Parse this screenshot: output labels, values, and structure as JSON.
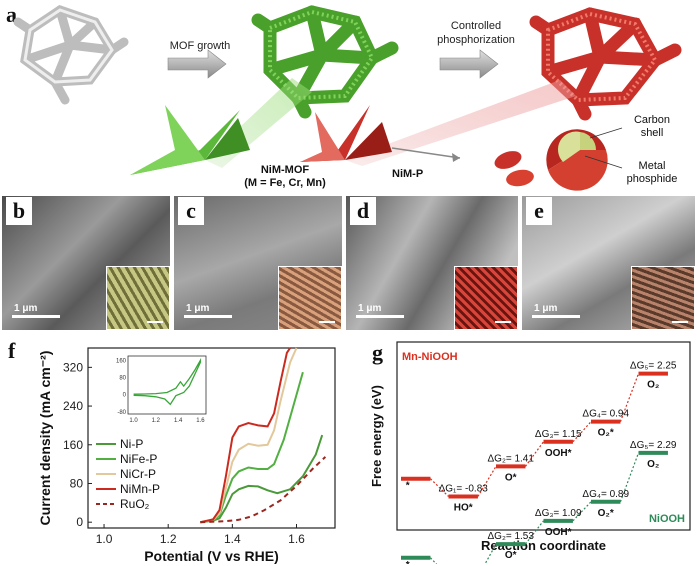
{
  "panel_a": {
    "letter": "a",
    "step1": "MOF growth",
    "step2_line1": "Controlled",
    "step2_line2": "phosphorization",
    "mof_label_line1": "NiM-MOF",
    "mof_label_line2": "(M = Fe, Cr, Mn)",
    "phosphide_label": "NiM-P",
    "carbon_shell_line1": "Carbon",
    "carbon_shell_line2": "shell",
    "metal_phosphide_line1": "Metal",
    "metal_phosphide_line2": "phosphide"
  },
  "sem_panels": [
    {
      "letter": "b",
      "scale": "1 μm",
      "inset_color": "#b8b872"
    },
    {
      "letter": "c",
      "scale": "1 μm",
      "inset_color": "#c88a68"
    },
    {
      "letter": "d",
      "scale": "1 μm",
      "inset_color": "#b8372e"
    },
    {
      "letter": "e",
      "scale": "1 μm",
      "inset_color": "#9b6a52"
    }
  ],
  "panel_f": {
    "letter": "f"
  },
  "panel_g": {
    "letter": "g"
  },
  "chart_data": [
    {
      "id": "f",
      "type": "line",
      "xlabel": "Potential (V vs RHE)",
      "ylabel": "Current density (mA cm⁻²)",
      "xlim": [
        0.95,
        1.72
      ],
      "ylim": [
        -12,
        360
      ],
      "xticks": [
        "1.0",
        "1.2",
        "1.4",
        "1.6"
      ],
      "yticks": [
        "0",
        "80",
        "160",
        "240",
        "320"
      ],
      "legend_position": "center-left",
      "series": [
        {
          "name": "Ni-P",
          "color": "#4a9a3a",
          "dash": false,
          "points": [
            [
              1.3,
              0
            ],
            [
              1.34,
              3
            ],
            [
              1.36,
              8
            ],
            [
              1.38,
              30
            ],
            [
              1.4,
              58
            ],
            [
              1.42,
              68
            ],
            [
              1.45,
              75
            ],
            [
              1.48,
              74
            ],
            [
              1.51,
              66
            ],
            [
              1.54,
              60
            ],
            [
              1.58,
              68
            ],
            [
              1.62,
              95
            ],
            [
              1.66,
              140
            ],
            [
              1.68,
              180
            ]
          ]
        },
        {
          "name": "NiFe-P",
          "color": "#52b042",
          "dash": false,
          "points": [
            [
              1.3,
              0
            ],
            [
              1.34,
              4
            ],
            [
              1.36,
              14
            ],
            [
              1.38,
              55
            ],
            [
              1.4,
              90
            ],
            [
              1.42,
              105
            ],
            [
              1.45,
              113
            ],
            [
              1.48,
              110
            ],
            [
              1.51,
              110
            ],
            [
              1.53,
              120
            ],
            [
              1.56,
              170
            ],
            [
              1.59,
              240
            ],
            [
              1.62,
              310
            ]
          ]
        },
        {
          "name": "NiCr-P",
          "color": "#e2c89a",
          "dash": false,
          "points": [
            [
              1.3,
              0
            ],
            [
              1.34,
              5
            ],
            [
              1.36,
              18
            ],
            [
              1.38,
              70
            ],
            [
              1.4,
              125
            ],
            [
              1.42,
              150
            ],
            [
              1.45,
              162
            ],
            [
              1.48,
              158
            ],
            [
              1.51,
              160
            ],
            [
              1.53,
              190
            ],
            [
              1.55,
              250
            ],
            [
              1.58,
              330
            ],
            [
              1.6,
              360
            ]
          ]
        },
        {
          "name": "NiMn-P",
          "color": "#cc2a1e",
          "dash": false,
          "points": [
            [
              1.3,
              0
            ],
            [
              1.34,
              6
            ],
            [
              1.36,
              25
            ],
            [
              1.38,
              95
            ],
            [
              1.4,
              175
            ],
            [
              1.42,
              198
            ],
            [
              1.45,
              205
            ],
            [
              1.48,
              200
            ],
            [
              1.51,
              198
            ],
            [
              1.53,
              225
            ],
            [
              1.55,
              290
            ],
            [
              1.57,
              350
            ],
            [
              1.58,
              360
            ]
          ]
        },
        {
          "name": "RuO₂",
          "color": "#9a2820",
          "dash": true,
          "points": [
            [
              1.3,
              0
            ],
            [
              1.38,
              2
            ],
            [
              1.42,
              5
            ],
            [
              1.46,
              12
            ],
            [
              1.5,
              25
            ],
            [
              1.55,
              45
            ],
            [
              1.6,
              75
            ],
            [
              1.65,
              110
            ],
            [
              1.69,
              135
            ]
          ]
        }
      ],
      "inset": {
        "xlim": [
          0.95,
          1.65
        ],
        "ylim": [
          -90,
          180
        ],
        "xticks": [
          "1.0",
          "1.2",
          "1.4",
          "1.6"
        ],
        "yticks": [
          "160",
          "80",
          "0",
          "-80"
        ],
        "cv_upper": [
          [
            1.0,
            2
          ],
          [
            1.1,
            3
          ],
          [
            1.2,
            5
          ],
          [
            1.3,
            10
          ],
          [
            1.38,
            30
          ],
          [
            1.42,
            60
          ],
          [
            1.45,
            40
          ],
          [
            1.5,
            75
          ],
          [
            1.55,
            115
          ],
          [
            1.6,
            160
          ]
        ],
        "cv_lower": [
          [
            1.6,
            150
          ],
          [
            1.5,
            40
          ],
          [
            1.45,
            10
          ],
          [
            1.38,
            -5
          ],
          [
            1.33,
            -45
          ],
          [
            1.28,
            -20
          ],
          [
            1.2,
            -10
          ],
          [
            1.1,
            -5
          ],
          [
            1.0,
            -3
          ]
        ]
      }
    },
    {
      "id": "g",
      "type": "line",
      "subtype": "free-energy-diagram",
      "xlabel": "Reaction coordinate",
      "ylabel": "Free energy (eV)",
      "series": [
        {
          "name": "Mn-NiOOH",
          "color": "#d93020",
          "levels": [
            {
              "label": "*",
              "value": 0
            },
            {
              "label": "HO*",
              "value": -0.83
            },
            {
              "label": "O*",
              "value": 0.58
            },
            {
              "label": "OOH*",
              "value": 1.73
            },
            {
              "label": "O₂*",
              "value": 2.67
            },
            {
              "label": "O₂",
              "value": 4.92
            }
          ],
          "steps": [
            "ΔG₁= -0.83",
            "ΔG₂= 1.41",
            "ΔG₃= 1.15",
            "ΔG₄= 0.94",
            "ΔG₅= 2.25"
          ]
        },
        {
          "name": "NiOOH",
          "color": "#2f8a5a",
          "levels": [
            {
              "label": "*",
              "value": 0
            },
            {
              "label": "HO*",
              "value": -0.89
            },
            {
              "label": "O*",
              "value": 0.64
            },
            {
              "label": "OOH*",
              "value": 1.73
            },
            {
              "label": "O₂*",
              "value": 2.62
            },
            {
              "label": "O₂",
              "value": 4.91
            }
          ],
          "steps": [
            "ΔG₁= -0.89",
            "ΔG₂= 1.53",
            "ΔG₃= 1.09",
            "ΔG₄= 0.89",
            "ΔG₅= 2.29"
          ]
        }
      ]
    }
  ]
}
